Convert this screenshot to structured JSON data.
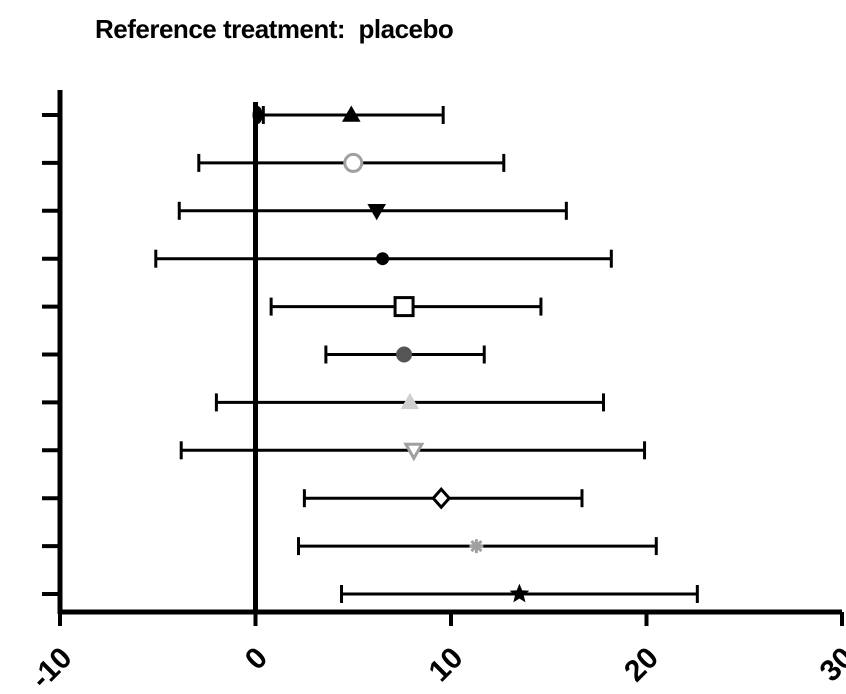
{
  "chart_data": {
    "type": "scatter",
    "title": "Reference treatment:  placebo",
    "xlabel": "",
    "ylabel": "",
    "xlim": [
      -10,
      30
    ],
    "xticks": [
      -10,
      0,
      10,
      20,
      30
    ],
    "xtick_labels": [
      "-10",
      "0",
      "10",
      "20",
      "30"
    ],
    "reference_line_x": 0,
    "grid": false,
    "legend": "none",
    "rows": [
      {
        "estimate": 4.9,
        "lower": 0.4,
        "upper": 9.6,
        "marker": "triangle-up",
        "color": "#000000",
        "fill": true
      },
      {
        "estimate": 5.0,
        "lower": -2.9,
        "upper": 12.7,
        "marker": "circle",
        "color": "#a0a0a0",
        "fill": false
      },
      {
        "estimate": 6.2,
        "lower": -3.9,
        "upper": 15.9,
        "marker": "triangle-down",
        "color": "#000000",
        "fill": true
      },
      {
        "estimate": 6.5,
        "lower": -5.1,
        "upper": 18.2,
        "marker": "dot",
        "color": "#000000",
        "fill": true
      },
      {
        "estimate": 7.6,
        "lower": 0.8,
        "upper": 14.6,
        "marker": "square",
        "color": "#000000",
        "fill": false
      },
      {
        "estimate": 7.6,
        "lower": 3.6,
        "upper": 11.7,
        "marker": "circle",
        "color": "#555555",
        "fill": true
      },
      {
        "estimate": 7.9,
        "lower": -2.0,
        "upper": 17.8,
        "marker": "triangle-up",
        "color": "#cfcfcf",
        "fill": true
      },
      {
        "estimate": 8.1,
        "lower": -3.8,
        "upper": 19.9,
        "marker": "triangle-down",
        "color": "#a0a0a0",
        "fill": false
      },
      {
        "estimate": 9.5,
        "lower": 2.5,
        "upper": 16.7,
        "marker": "diamond",
        "color": "#000000",
        "fill": false
      },
      {
        "estimate": 11.3,
        "lower": 2.2,
        "upper": 20.5,
        "marker": "asterisk",
        "color": "#a0a0a0",
        "fill": true
      },
      {
        "estimate": 13.5,
        "lower": 4.4,
        "upper": 22.6,
        "marker": "star",
        "color": "#000000",
        "fill": true
      }
    ]
  }
}
